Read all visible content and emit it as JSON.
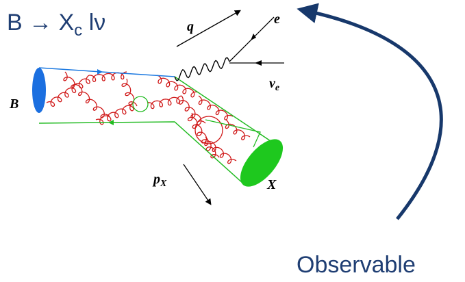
{
  "title": {
    "main": "B → X",
    "sub": "c",
    "tail": " lν"
  },
  "labels": {
    "q": "q",
    "e": "e",
    "nu": "ν",
    "nu_sub": "e",
    "b": "B",
    "p": "p",
    "p_sub": "X",
    "x": "X"
  },
  "observable": "Observable"
}
